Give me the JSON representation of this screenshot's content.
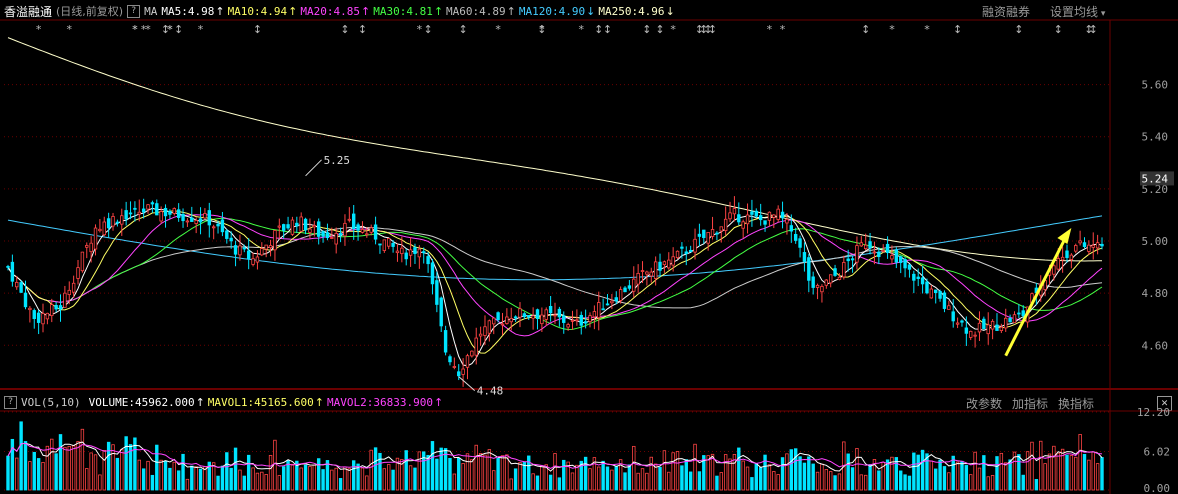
{
  "header": {
    "stock_name": "香溢融通",
    "period": "(日线,前复权)",
    "help": "?",
    "ma_prefix": "MA",
    "indicators": [
      {
        "label": "MA5:4.98",
        "arrow": "↑",
        "color": "#ffffff"
      },
      {
        "label": "MA10:4.94",
        "arrow": "↑",
        "color": "#ffff66"
      },
      {
        "label": "MA20:4.85",
        "arrow": "↑",
        "color": "#ff44ff"
      },
      {
        "label": "MA30:4.81",
        "arrow": "↑",
        "color": "#44ff44"
      },
      {
        "label": "MA60:4.89",
        "arrow": "↑",
        "color": "#bbbbbb"
      },
      {
        "label": "MA120:4.90",
        "arrow": "↓",
        "color": "#44ccff"
      },
      {
        "label": "MA250:4.96",
        "arrow": "↓",
        "color": "#ffffcc"
      }
    ],
    "right_controls": [
      "融资融券",
      "设置均线"
    ]
  },
  "volume_header": {
    "help": "?",
    "name": "VOL(5,10)",
    "indicators": [
      {
        "label": "VOLUME:45962.000",
        "arrow": "↑",
        "color": "#ffffff"
      },
      {
        "label": "MAVOL1:45165.600",
        "arrow": "↑",
        "color": "#ffff66"
      },
      {
        "label": "MAVOL2:36833.900",
        "arrow": "↑",
        "color": "#ff44ff"
      }
    ],
    "right_controls": [
      "改参数",
      "加指标",
      "换指标"
    ],
    "close": "✕"
  },
  "colors": {
    "up": "#ff4444",
    "down": "#00e4ff",
    "grid": "#6a0000",
    "axis_text": "#a0a0a0",
    "ma5": "#ffffff",
    "ma10": "#ffff66",
    "ma20": "#ff44ff",
    "ma30": "#44ff44",
    "ma60": "#cccccc",
    "ma120": "#44ccff",
    "ma250": "#ffffcc",
    "annotation_arrow": "#ffff33"
  },
  "chart_data": [
    {
      "type": "candlestick",
      "ylim": [
        4.44,
        5.84
      ],
      "y_ticks": [
        "5.60",
        "5.40",
        "5.20",
        "5.00",
        "4.80",
        "4.60"
      ],
      "current_price_label": "5.24",
      "annotations": [
        {
          "text": "5.25",
          "kind": "high"
        },
        {
          "text": "4.48",
          "kind": "low"
        }
      ],
      "ma250_end": 4.96,
      "ma120_end": 4.9,
      "ma60_end": 4.89,
      "ma30_end": 4.81,
      "ma20_end": 4.85,
      "ma10_end": 4.94,
      "ma5_end": 4.98
    },
    {
      "type": "bar",
      "series": "volume",
      "y_ticks": [
        "12.20",
        "6.02",
        "0.00"
      ],
      "ylim": [
        0,
        12.2
      ]
    }
  ]
}
